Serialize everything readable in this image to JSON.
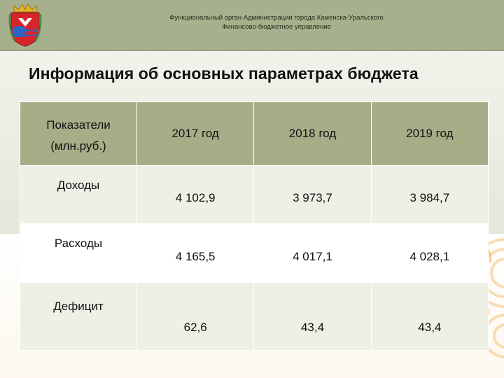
{
  "header": {
    "org_line1": "Функциональный орган Администрации города Каменска-Уральского",
    "org_line2": "Финансово-бюджетное управление",
    "coat_icon": "city-coat-of-arms-icon"
  },
  "title": "Информация об основных параметрах бюджета",
  "table": {
    "head_label_line1": "Показатели",
    "head_label_line2": "(млн.руб.)",
    "years": [
      "2017 год",
      "2018 год",
      "2019 год"
    ],
    "rows": [
      {
        "label": "Доходы",
        "values": [
          "4 102,9",
          "3 973,7",
          "3 984,7"
        ]
      },
      {
        "label": "Расходы",
        "values": [
          "4 165,5",
          "4 017,1",
          "4 028,1"
        ]
      },
      {
        "label": "Дефицит",
        "values": [
          "62,6",
          "43,4",
          "43,4"
        ]
      }
    ]
  },
  "colors": {
    "header_bar": "#a7b08c",
    "table_head": "#a6ae88",
    "row_band": "#eef0e6",
    "decor_swirl": "#f2b24a"
  }
}
